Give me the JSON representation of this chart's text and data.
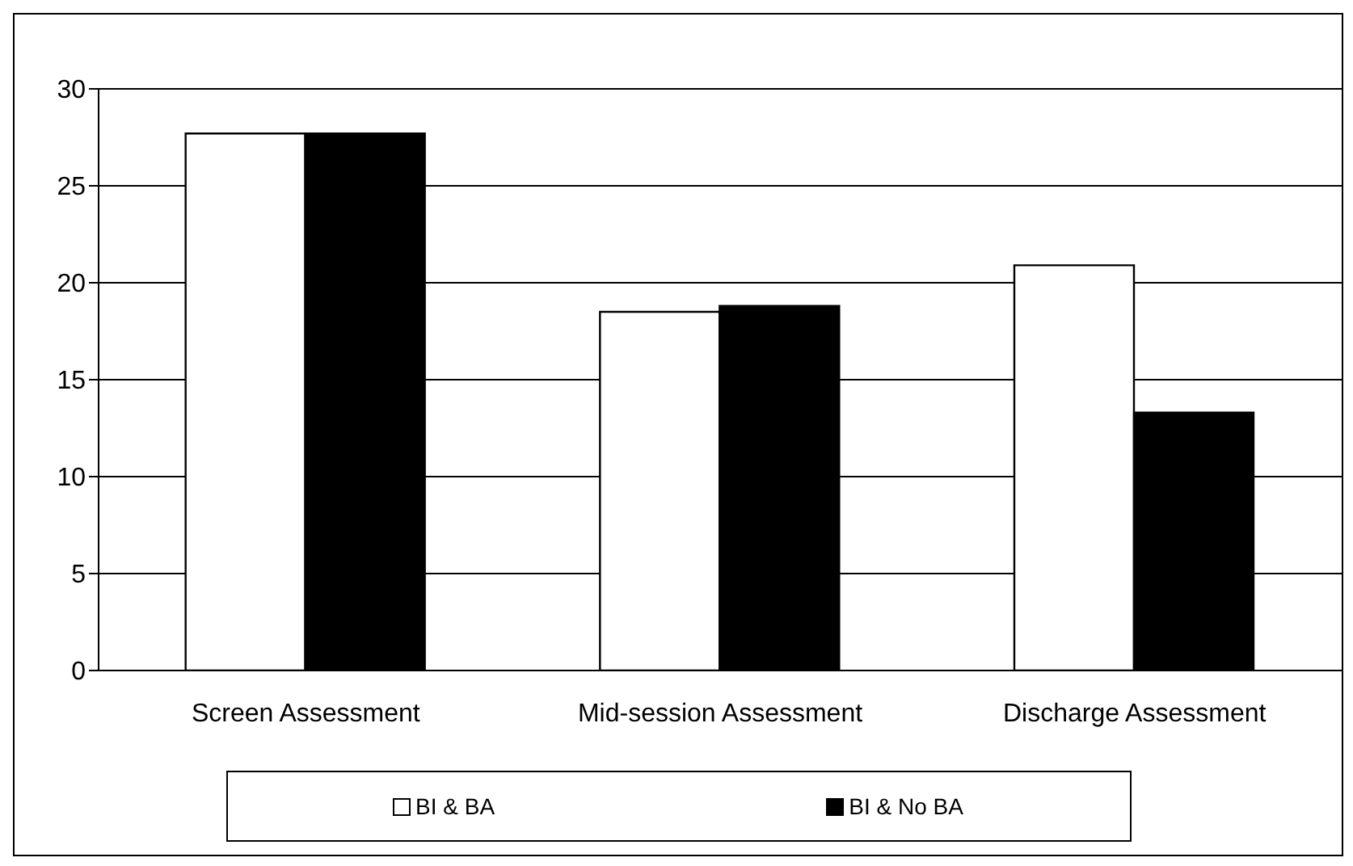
{
  "chart_data": {
    "type": "bar",
    "categories": [
      "Screen Assessment",
      "Mid-session Assessment",
      "Discharge Assessment"
    ],
    "series": [
      {
        "name": "BI & BA",
        "color": "#ffffff",
        "values": [
          27.7,
          18.5,
          20.9
        ]
      },
      {
        "name": "BI & No BA",
        "color": "#000000",
        "values": [
          27.7,
          18.8,
          13.3
        ]
      }
    ],
    "ylim": [
      0,
      30
    ],
    "yticks": [
      0,
      5,
      10,
      15,
      20,
      25,
      30
    ],
    "grid": "y",
    "legend": "bottom"
  }
}
